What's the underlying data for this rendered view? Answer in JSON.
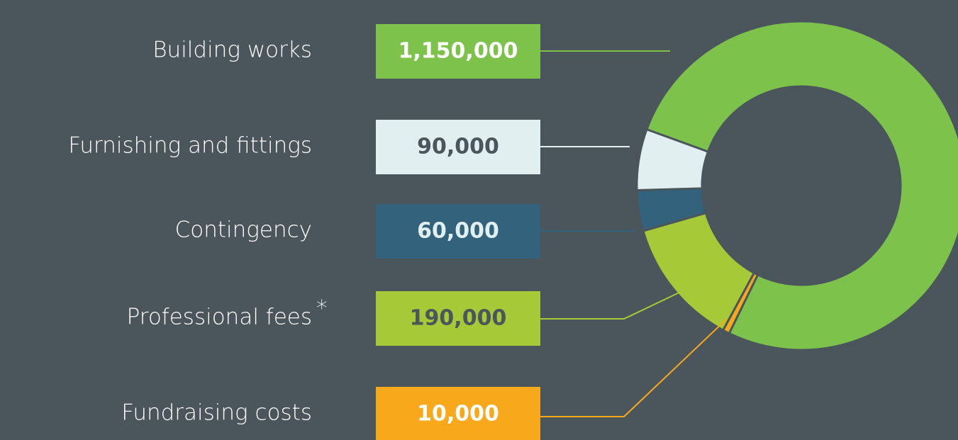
{
  "chart_data": {
    "type": "donut",
    "categories": [
      "Building works",
      "Furnishing and fittings",
      "Contingency",
      "Professional fees",
      "Fundraising costs"
    ],
    "values": [
      1150000,
      90000,
      60000,
      190000,
      10000
    ],
    "value_labels": [
      "1,150,000",
      "90,000",
      "60,000",
      "190,000",
      "10,000"
    ],
    "colors": [
      "#7dc24b",
      "#e2eff0",
      "#33637c",
      "#a6c938",
      "#f7a81b"
    ],
    "footnote_marks": [
      null,
      null,
      null,
      "*",
      null
    ]
  }
}
